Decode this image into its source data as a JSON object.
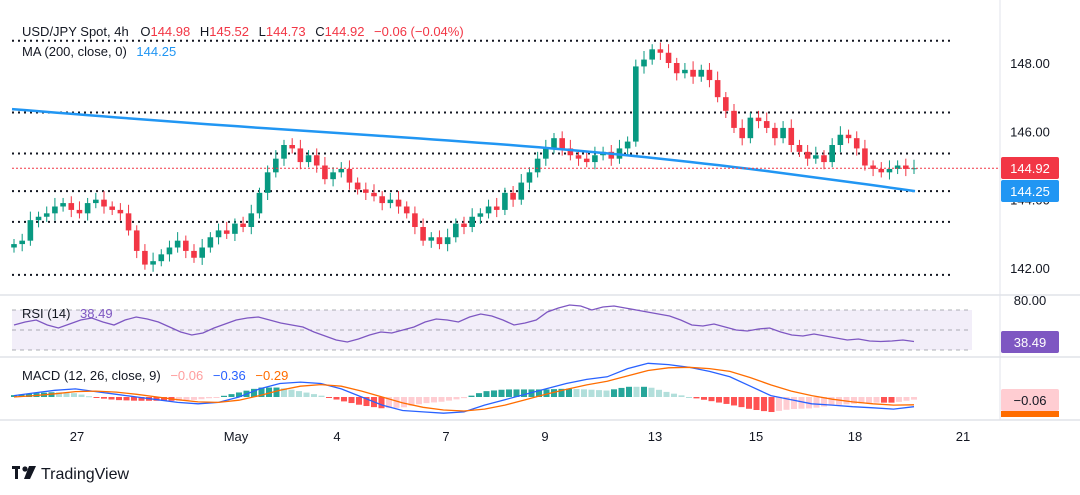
{
  "legend": {
    "symbol": "USD/JPY Spot, 4h",
    "o_label": "O",
    "o_value": "144.98",
    "h_label": "H",
    "h_value": "145.52",
    "l_label": "L",
    "l_value": "144.73",
    "c_label": "C",
    "c_value": "144.92",
    "change": "−0.06 (−0.04%)",
    "ma_label": "MA (200, close, 0)",
    "ma_value": "144.25"
  },
  "rsi": {
    "label": "RSI (14)",
    "value": "38.49",
    "badge": "38.49",
    "upper_tick": "80.00"
  },
  "macd": {
    "label": "MACD (12, 26, close, 9)",
    "hist": "−0.06",
    "macd": "−0.36",
    "signal": "−0.29",
    "badge": "−0.06"
  },
  "price_badges": {
    "last": "144.92",
    "ma": "144.25"
  },
  "brand": "TradingView",
  "colors": {
    "up": "#089981",
    "down": "#f23645",
    "ma": "#2196f3",
    "rsi": "#7e57c2",
    "macd": "#2962ff",
    "signal": "#ff6d00",
    "hist_up": "#26a69a",
    "hist_up_light": "#b2dfdb",
    "hist_down": "#ff5252",
    "hist_down_light": "#ffcdd2",
    "level": "#131722"
  },
  "chart_data": {
    "type": "candlestick",
    "title": "USD/JPY Spot, 4h",
    "y_axis": {
      "ticks": [
        "142.00",
        "144.00",
        "146.00",
        "148.00"
      ],
      "range": [
        141.5,
        149.2
      ]
    },
    "x_axis": {
      "ticks": [
        "27",
        "May",
        "4",
        "7",
        "9",
        "13",
        "15",
        "18",
        "21"
      ]
    },
    "horizontal_levels": [
      148.65,
      146.55,
      145.35,
      144.25,
      143.35,
      141.8
    ],
    "ma200_start": 146.65,
    "ma200_end": 144.25,
    "candles_close": [
      142.7,
      142.8,
      143.4,
      143.5,
      143.6,
      143.8,
      143.9,
      143.7,
      143.6,
      143.9,
      144.0,
      143.8,
      143.7,
      143.6,
      143.1,
      142.5,
      142.1,
      142.2,
      142.4,
      142.6,
      142.8,
      142.5,
      142.3,
      142.6,
      142.9,
      143.1,
      143.0,
      143.3,
      143.2,
      143.6,
      144.2,
      144.8,
      145.2,
      145.6,
      145.5,
      145.1,
      145.3,
      145.0,
      144.6,
      144.8,
      144.9,
      144.5,
      144.3,
      144.2,
      144.1,
      143.9,
      144.0,
      143.8,
      143.6,
      143.2,
      142.8,
      142.9,
      142.7,
      142.9,
      143.3,
      143.2,
      143.5,
      143.6,
      143.8,
      143.7,
      144.2,
      144.0,
      144.5,
      144.8,
      145.2,
      145.5,
      145.8,
      145.5,
      145.3,
      145.2,
      145.1,
      145.3,
      145.4,
      145.2,
      145.5,
      145.7,
      147.9,
      148.1,
      148.4,
      148.3,
      148.0,
      147.7,
      147.8,
      147.6,
      147.8,
      147.5,
      147.0,
      146.6,
      146.1,
      145.8,
      146.4,
      146.3,
      146.1,
      145.8,
      146.1,
      145.6,
      145.4,
      145.2,
      145.3,
      145.1,
      145.6,
      145.9,
      145.8,
      145.5,
      145.0,
      144.9,
      144.8,
      144.9,
      145.0,
      144.9,
      144.92
    ],
    "rsi": {
      "range": [
        20,
        80
      ],
      "level_upper": 70,
      "level_mid": 50,
      "level_lower": 30,
      "values": [
        55,
        58,
        60,
        55,
        52,
        56,
        60,
        62,
        58,
        55,
        60,
        63,
        61,
        58,
        53,
        48,
        45,
        47,
        52,
        56,
        60,
        62,
        63,
        60,
        57,
        55,
        53,
        48,
        44,
        40,
        38,
        41,
        45,
        48,
        47,
        50,
        53,
        58,
        61,
        60,
        58,
        63,
        66,
        64,
        60,
        55,
        57,
        60,
        68,
        72,
        75,
        74,
        70,
        73,
        74,
        72,
        70,
        68,
        66,
        64,
        60,
        55,
        54,
        56,
        53,
        50,
        49,
        51,
        52,
        48,
        45,
        44,
        46,
        44,
        42,
        40,
        41,
        39,
        38.49,
        39,
        40,
        38.49
      ]
    },
    "macd": {
      "range": [
        -0.8,
        1.4
      ],
      "macd": [
        0.05,
        0.15,
        0.25,
        0.3,
        0.2,
        0.1,
        0.0,
        -0.1,
        -0.2,
        -0.25,
        -0.2,
        0.0,
        0.3,
        0.5,
        0.55,
        0.5,
        0.3,
        0.0,
        -0.3,
        -0.5,
        -0.55,
        -0.6,
        -0.55,
        -0.3,
        -0.1,
        0.1,
        0.3,
        0.5,
        0.65,
        0.75,
        1.05,
        1.25,
        1.2,
        1.1,
        0.95,
        0.75,
        0.4,
        0.05,
        -0.1,
        -0.25,
        -0.3,
        -0.36,
        -0.4,
        -0.45,
        -0.36
      ],
      "signal": [
        0.0,
        0.05,
        0.12,
        0.2,
        0.22,
        0.18,
        0.1,
        0.0,
        -0.1,
        -0.18,
        -0.2,
        -0.12,
        0.05,
        0.25,
        0.4,
        0.46,
        0.4,
        0.22,
        0.0,
        -0.22,
        -0.38,
        -0.48,
        -0.52,
        -0.45,
        -0.3,
        -0.1,
        0.1,
        0.28,
        0.45,
        0.58,
        0.78,
        0.98,
        1.08,
        1.1,
        1.05,
        0.95,
        0.72,
        0.45,
        0.22,
        0.05,
        -0.08,
        -0.18,
        -0.25,
        -0.3,
        -0.29
      ]
    }
  }
}
